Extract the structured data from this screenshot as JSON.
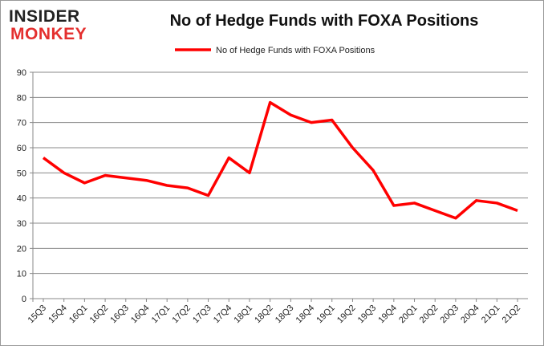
{
  "logo": {
    "line1": "INSIDER",
    "line2": "MONKEY"
  },
  "chart_data": {
    "type": "line",
    "title": "No of Hedge Funds with FOXA Positions",
    "xlabel": "",
    "ylabel": "",
    "ylim": [
      0,
      90
    ],
    "yticks": [
      0,
      10,
      20,
      30,
      40,
      50,
      60,
      70,
      80,
      90
    ],
    "grid": true,
    "legend": "top-center",
    "categories": [
      "15Q3",
      "15Q4",
      "16Q1",
      "16Q2",
      "16Q3",
      "16Q4",
      "17Q1",
      "17Q2",
      "17Q3",
      "17Q4",
      "18Q1",
      "18Q2",
      "18Q3",
      "18Q4",
      "19Q1",
      "19Q2",
      "19Q3",
      "19Q4",
      "20Q1",
      "20Q2",
      "20Q3",
      "20Q4",
      "21Q1",
      "21Q2"
    ],
    "series": [
      {
        "name": "No of Hedge Funds with FOXA Positions",
        "color": "#ff0000",
        "values": [
          56,
          50,
          46,
          49,
          48,
          47,
          45,
          44,
          41,
          56,
          50,
          78,
          73,
          70,
          71,
          60,
          51,
          37,
          38,
          35,
          32,
          39,
          38,
          35
        ]
      }
    ]
  }
}
